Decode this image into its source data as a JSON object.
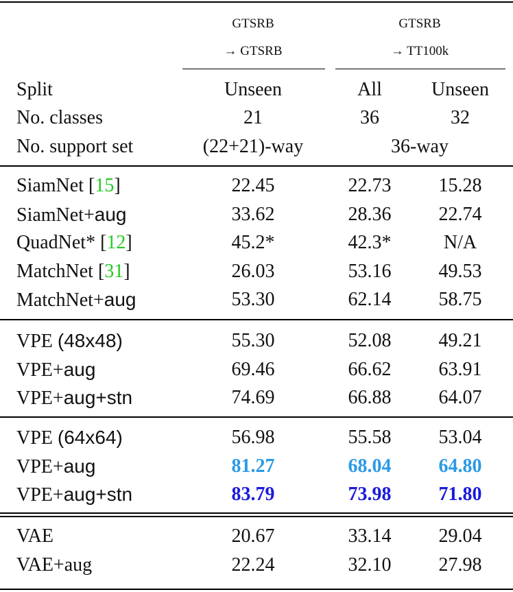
{
  "header": {
    "group1": {
      "line1": "GTSRB",
      "line2": "→ GTSRB"
    },
    "group2": {
      "line1": "GTSRB",
      "line2": "→ TT100k"
    },
    "rows": [
      {
        "label": "Split",
        "c1": "Unseen",
        "c2": "All",
        "c3": "Unseen"
      },
      {
        "label": "No. classes",
        "c1": "21",
        "c2": "36",
        "c3": "32"
      },
      {
        "label": "No. support set",
        "c1": "(22+21)-way",
        "c23": "36-way"
      }
    ]
  },
  "sections": [
    {
      "rows": [
        {
          "name_serif": "SiamNet ",
          "cite_open": "[",
          "cite": "15",
          "cite_close": "]",
          "c1": "22.45",
          "c2": "22.73",
          "c3": "15.28"
        },
        {
          "name_serif": "SiamNet+",
          "name_sans": "aug",
          "c1": "33.62",
          "c2": "28.36",
          "c3": "22.74"
        },
        {
          "name_serif": "QuadNet* ",
          "cite_open": "[",
          "cite": "12",
          "cite_close": "]",
          "c1": "45.2*",
          "c2": "42.3*",
          "c3": "N/A"
        },
        {
          "name_serif": "MatchNet ",
          "cite_open": "[",
          "cite": "31",
          "cite_close": "]",
          "c1": "26.03",
          "c2": "53.16",
          "c3": "49.53"
        },
        {
          "name_serif": "MatchNet+",
          "name_sans": "aug",
          "c1": "53.30",
          "c2": "62.14",
          "c3": "58.75"
        }
      ]
    },
    {
      "rows": [
        {
          "name_serif": "VPE ",
          "name_sans": "(48x48)",
          "c1": "55.30",
          "c2": "52.08",
          "c3": "49.21"
        },
        {
          "name_serif": "VPE+",
          "name_sans": "aug",
          "c1": "69.46",
          "c2": "66.62",
          "c3": "63.91"
        },
        {
          "name_serif": "VPE+",
          "name_sans": "aug+stn",
          "c1": "74.69",
          "c2": "66.88",
          "c3": "64.07"
        }
      ]
    },
    {
      "rows": [
        {
          "name_serif": "VPE ",
          "name_sans": "(64x64)",
          "c1": "56.98",
          "c2": "55.58",
          "c3": "53.04"
        },
        {
          "name_serif": "VPE+",
          "name_sans": "aug",
          "c1": "81.27",
          "c2": "68.04",
          "c3": "64.80",
          "highlight": "second"
        },
        {
          "name_serif": "VPE+",
          "name_sans": "aug+stn",
          "c1": "83.79",
          "c2": "73.98",
          "c3": "71.80",
          "highlight": "best"
        }
      ]
    },
    {
      "rows": [
        {
          "name_serif": "VAE",
          "c1": "20.67",
          "c2": "33.14",
          "c3": "29.04"
        },
        {
          "name_serif": "VAE+aug",
          "c1": "22.24",
          "c2": "32.10",
          "c3": "27.98"
        }
      ]
    }
  ],
  "colors": {
    "citation": "#22cc22",
    "best": "#1a1adc",
    "second_best": "#2a9ae6"
  }
}
